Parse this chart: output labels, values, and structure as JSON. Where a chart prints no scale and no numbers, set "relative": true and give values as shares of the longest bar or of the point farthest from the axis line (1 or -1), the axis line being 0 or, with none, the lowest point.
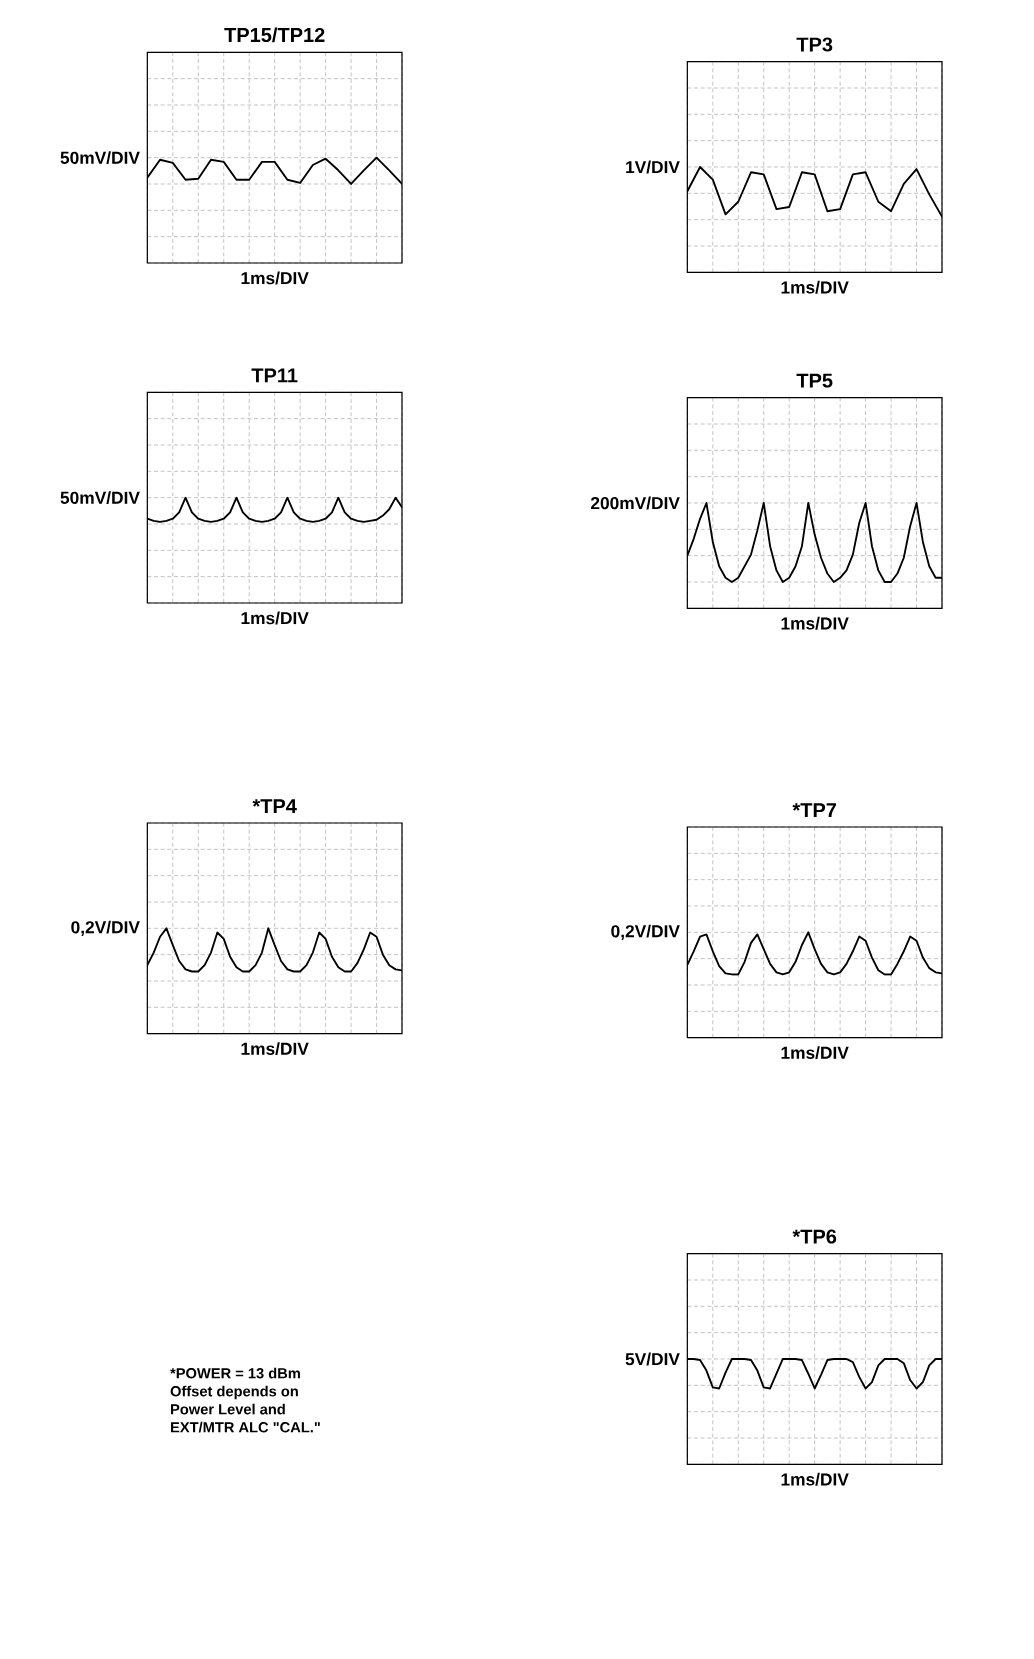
{
  "chart_data": [
    {
      "type": "line",
      "title": "TP15/TP12",
      "xlabel": "1ms/DIV",
      "ylabel": "50mV/DIV",
      "relative": true,
      "grid": true,
      "color": "#000000",
      "categories": [
        null,
        null,
        null,
        null,
        null,
        null,
        null,
        null,
        null,
        null,
        null,
        null,
        null,
        null,
        null,
        null,
        null,
        null,
        null,
        null,
        null
      ],
      "values": [
        0.81,
        0.98,
        0.95,
        0.79,
        0.8,
        0.98,
        0.96,
        0.79,
        0.79,
        0.96,
        0.96,
        0.79,
        0.76,
        0.93,
        0.99,
        0.88,
        0.75,
        0.88,
        1,
        0.88,
        0.75
      ]
    },
    {
      "type": "line",
      "title": "TP3",
      "xlabel": "1ms/DIV",
      "ylabel": "1V/DIV",
      "relative": true,
      "grid": true,
      "color": "#000000",
      "categories": [
        null,
        null,
        null,
        null,
        null,
        null,
        null,
        null,
        null,
        null,
        null,
        null,
        null,
        null,
        null,
        null,
        null,
        null,
        null,
        null,
        null
      ],
      "values": [
        0.77,
        1,
        0.88,
        0.55,
        0.67,
        0.95,
        0.93,
        0.6,
        0.62,
        0.95,
        0.93,
        0.58,
        0.6,
        0.93,
        0.95,
        0.67,
        0.58,
        0.84,
        0.98,
        0.74,
        0.53
      ]
    },
    {
      "type": "line",
      "title": "TP11",
      "xlabel": "1ms/DIV",
      "ylabel": "50mV/DIV",
      "relative": true,
      "grid": true,
      "color": "#000000",
      "categories": [
        null,
        null,
        null,
        null,
        null,
        null,
        null,
        null,
        null,
        null,
        null,
        null,
        null,
        null,
        null,
        null,
        null,
        null,
        null,
        null,
        null,
        null,
        null,
        null,
        null,
        null,
        null,
        null,
        null,
        null,
        null,
        null,
        null,
        null,
        null,
        null,
        null,
        null,
        null,
        null,
        null
      ],
      "values": [
        0.8,
        0.78,
        0.77,
        0.78,
        0.8,
        0.86,
        1,
        0.86,
        0.8,
        0.78,
        0.77,
        0.78,
        0.8,
        0.86,
        1,
        0.86,
        0.8,
        0.78,
        0.77,
        0.78,
        0.8,
        0.86,
        1,
        0.86,
        0.8,
        0.78,
        0.77,
        0.78,
        0.8,
        0.86,
        1,
        0.86,
        0.8,
        0.78,
        0.77,
        0.78,
        0.79,
        0.83,
        0.89,
        1,
        0.91
      ]
    },
    {
      "type": "line",
      "title": "TP5",
      "xlabel": "1ms/DIV",
      "ylabel": "200mV/DIV",
      "relative": true,
      "grid": true,
      "color": "#000000",
      "categories": [
        null,
        null,
        null,
        null,
        null,
        null,
        null,
        null,
        null,
        null,
        null,
        null,
        null,
        null,
        null,
        null,
        null,
        null,
        null,
        null,
        null,
        null,
        null,
        null,
        null,
        null,
        null,
        null,
        null,
        null,
        null,
        null,
        null,
        null,
        null,
        null,
        null,
        null,
        null,
        null,
        null
      ],
      "values": [
        0.5,
        0.66,
        0.85,
        1,
        0.63,
        0.4,
        0.29,
        0.25,
        0.29,
        0.4,
        0.51,
        0.74,
        1,
        0.59,
        0.36,
        0.25,
        0.29,
        0.4,
        0.59,
        1,
        0.7,
        0.48,
        0.33,
        0.25,
        0.29,
        0.36,
        0.51,
        0.81,
        1,
        0.59,
        0.36,
        0.25,
        0.25,
        0.33,
        0.48,
        0.78,
        1,
        0.63,
        0.4,
        0.29,
        0.29
      ]
    },
    {
      "type": "line",
      "title": "*TP4",
      "xlabel": "1ms/DIV",
      "ylabel": "0,2V/DIV",
      "relative": true,
      "grid": true,
      "color": "#000000",
      "categories": [
        null,
        null,
        null,
        null,
        null,
        null,
        null,
        null,
        null,
        null,
        null,
        null,
        null,
        null,
        null,
        null,
        null,
        null,
        null,
        null,
        null,
        null,
        null,
        null,
        null,
        null,
        null,
        null,
        null,
        null,
        null,
        null,
        null,
        null,
        null,
        null,
        null,
        null,
        null,
        null,
        null
      ],
      "values": [
        0.65,
        0.77,
        0.92,
        1,
        0.84,
        0.69,
        0.61,
        0.59,
        0.59,
        0.65,
        0.77,
        0.96,
        0.9,
        0.73,
        0.63,
        0.59,
        0.59,
        0.65,
        0.77,
        1,
        0.84,
        0.69,
        0.61,
        0.59,
        0.59,
        0.65,
        0.77,
        0.96,
        0.9,
        0.73,
        0.63,
        0.59,
        0.59,
        0.67,
        0.8,
        0.96,
        0.92,
        0.75,
        0.65,
        0.61,
        0.6
      ]
    },
    {
      "type": "line",
      "title": "*TP7",
      "xlabel": "1ms/DIV",
      "ylabel": "0,2V/DIV",
      "relative": true,
      "grid": true,
      "color": "#000000",
      "categories": [
        null,
        null,
        null,
        null,
        null,
        null,
        null,
        null,
        null,
        null,
        null,
        null,
        null,
        null,
        null,
        null,
        null,
        null,
        null,
        null,
        null,
        null,
        null,
        null,
        null,
        null,
        null,
        null,
        null,
        null,
        null,
        null,
        null,
        null,
        null,
        null,
        null,
        null,
        null,
        null,
        null
      ],
      "values": [
        0.69,
        0.82,
        0.96,
        0.98,
        0.82,
        0.68,
        0.61,
        0.6,
        0.6,
        0.72,
        0.9,
        0.98,
        0.84,
        0.7,
        0.62,
        0.6,
        0.62,
        0.72,
        0.88,
        1,
        0.84,
        0.7,
        0.62,
        0.6,
        0.62,
        0.7,
        0.82,
        0.96,
        0.92,
        0.76,
        0.64,
        0.6,
        0.6,
        0.7,
        0.82,
        0.96,
        0.92,
        0.76,
        0.66,
        0.62,
        0.61
      ]
    },
    {
      "type": "other",
      "annotations": [
        "*POWER = 13 dBm",
        "Offset depends on",
        "Power Level and",
        "EXT/MTR ALC \"CAL.\""
      ]
    },
    {
      "type": "line",
      "title": "*TP6",
      "xlabel": "1ms/DIV",
      "ylabel": "5V/DIV",
      "relative": true,
      "grid": true,
      "color": "#000000",
      "categories": [
        null,
        null,
        null,
        null,
        null,
        null,
        null,
        null,
        null,
        null,
        null,
        null,
        null,
        null,
        null,
        null,
        null,
        null,
        null,
        null,
        null,
        null,
        null,
        null,
        null,
        null,
        null,
        null,
        null,
        null,
        null,
        null,
        null,
        null,
        null,
        null,
        null,
        null,
        null,
        null,
        null
      ],
      "values": [
        1,
        1,
        0.99,
        0.89,
        0.73,
        0.72,
        0.87,
        1,
        1,
        1,
        0.99,
        0.89,
        0.73,
        0.72,
        0.86,
        1,
        1,
        1,
        0.99,
        0.86,
        0.72,
        0.85,
        0.99,
        1,
        1,
        1,
        0.97,
        0.83,
        0.72,
        0.78,
        0.94,
        1,
        1,
        1,
        0.96,
        0.8,
        0.72,
        0.78,
        0.94,
        1,
        1
      ]
    }
  ]
}
